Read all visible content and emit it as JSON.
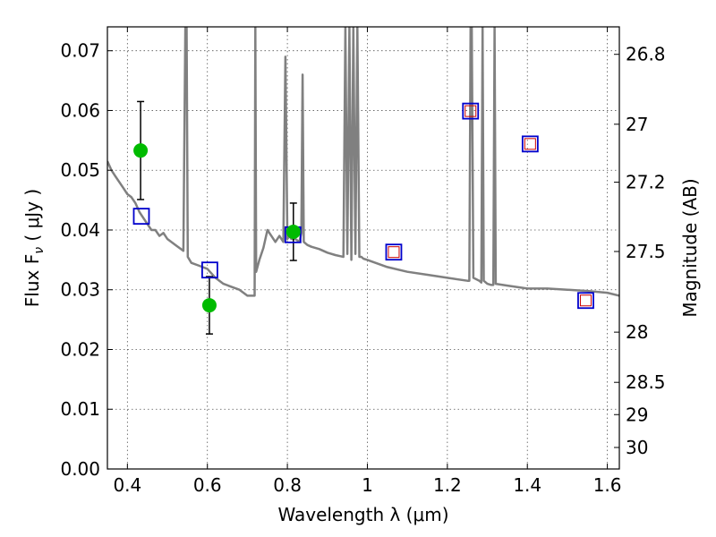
{
  "chart_data": {
    "type": "scatter",
    "xlabel": "Wavelength  λ (μm)",
    "ylabel": "Flux  F",
    "ylabel_subscript": "ν",
    "ylabel_unit": " ( μJy )",
    "y2label": "Magnitude (AB)",
    "xlim": [
      0.35,
      1.63
    ],
    "ylim": [
      0.0,
      0.074
    ],
    "grid": true,
    "x_ticks": [
      {
        "value": 0.4,
        "label": "0.4"
      },
      {
        "value": 0.6,
        "label": "0.6"
      },
      {
        "value": 0.8,
        "label": "0.8"
      },
      {
        "value": 1.0,
        "label": "1"
      },
      {
        "value": 1.2,
        "label": "1.2"
      },
      {
        "value": 1.4,
        "label": "1.4"
      },
      {
        "value": 1.6,
        "label": "1.6"
      }
    ],
    "y_ticks": [
      {
        "value": 0.0,
        "label": "0.00"
      },
      {
        "value": 0.01,
        "label": "0.01"
      },
      {
        "value": 0.02,
        "label": "0.02"
      },
      {
        "value": 0.03,
        "label": "0.03"
      },
      {
        "value": 0.04,
        "label": "0.04"
      },
      {
        "value": 0.05,
        "label": "0.05"
      },
      {
        "value": 0.06,
        "label": "0.06"
      },
      {
        "value": 0.07,
        "label": "0.07"
      }
    ],
    "y2_ticks": [
      {
        "label": "26.8",
        "flux": 0.0694
      },
      {
        "label": "27",
        "flux": 0.0577
      },
      {
        "label": "27.2",
        "flux": 0.048
      },
      {
        "label": "27.5",
        "flux": 0.0364
      },
      {
        "label": "28",
        "flux": 0.0229
      },
      {
        "label": "28.5",
        "flux": 0.0145
      },
      {
        "label": "29",
        "flux": 0.0091
      },
      {
        "label": "30",
        "flux": 0.0036
      }
    ],
    "colors": {
      "model": "#808080",
      "observed": "#00bb00",
      "model_phot": "#0000cc",
      "model_phot_inner": "#cc0000",
      "errorbar": "#000000",
      "grid": "#555555"
    },
    "series": [
      {
        "kind": "model_spectrum",
        "x": [
          0.35,
          0.36,
          0.37,
          0.38,
          0.39,
          0.4,
          0.41,
          0.42,
          0.43,
          0.44,
          0.45,
          0.46,
          0.47,
          0.48,
          0.49,
          0.5,
          0.52,
          0.54,
          0.545,
          0.548,
          0.551,
          0.56,
          0.58,
          0.6,
          0.62,
          0.64,
          0.66,
          0.68,
          0.7,
          0.71,
          0.718,
          0.72,
          0.722,
          0.73,
          0.74,
          0.75,
          0.76,
          0.77,
          0.78,
          0.79,
          0.795,
          0.8,
          0.805,
          0.81,
          0.82,
          0.83,
          0.835,
          0.838,
          0.841,
          0.85,
          0.86,
          0.88,
          0.9,
          0.92,
          0.94,
          0.945,
          0.95,
          0.955,
          0.96,
          0.965,
          0.97,
          0.975,
          0.98,
          0.985,
          0.99,
          1.0,
          1.05,
          1.1,
          1.15,
          1.2,
          1.25,
          1.255,
          1.258,
          1.261,
          1.265,
          1.28,
          1.285,
          1.288,
          1.291,
          1.3,
          1.31,
          1.315,
          1.318,
          1.321,
          1.35,
          1.4,
          1.45,
          1.5,
          1.55,
          1.6,
          1.63
        ],
        "y": [
          0.0515,
          0.05,
          0.049,
          0.048,
          0.047,
          0.046,
          0.0455,
          0.0445,
          0.043,
          0.042,
          0.041,
          0.04,
          0.04,
          0.039,
          0.0395,
          0.0385,
          0.0375,
          0.0365,
          0.074,
          0.074,
          0.0355,
          0.0345,
          0.034,
          0.0335,
          0.032,
          0.031,
          0.0305,
          0.03,
          0.029,
          0.029,
          0.029,
          0.074,
          0.033,
          0.035,
          0.037,
          0.04,
          0.039,
          0.038,
          0.039,
          0.038,
          0.069,
          0.0385,
          0.039,
          0.0385,
          0.0385,
          0.038,
          0.0395,
          0.066,
          0.038,
          0.0375,
          0.0372,
          0.0368,
          0.0362,
          0.0358,
          0.0355,
          0.074,
          0.036,
          0.074,
          0.035,
          0.074,
          0.036,
          0.074,
          0.0355,
          0.0355,
          0.0352,
          0.035,
          0.0338,
          0.033,
          0.0325,
          0.032,
          0.0315,
          0.0315,
          0.074,
          0.074,
          0.032,
          0.0315,
          0.0312,
          0.074,
          0.0315,
          0.031,
          0.0308,
          0.0308,
          0.074,
          0.031,
          0.0307,
          0.0302,
          0.0302,
          0.03,
          0.0298,
          0.0295,
          0.029
        ]
      },
      {
        "kind": "observed",
        "name": "",
        "x": [
          0.433,
          0.605,
          0.815
        ],
        "y": [
          0.0533,
          0.0274,
          0.0397
        ],
        "yerr": [
          0.0082,
          0.0048,
          0.0048
        ]
      },
      {
        "kind": "model_photometry",
        "name": "",
        "x": [
          0.435,
          0.606,
          0.814,
          1.066,
          1.258,
          1.407,
          1.546
        ],
        "y": [
          0.0423,
          0.0333,
          0.0392,
          0.0363,
          0.0599,
          0.0544,
          0.0282
        ],
        "inner": [
          false,
          false,
          false,
          true,
          true,
          true,
          true
        ]
      }
    ]
  }
}
